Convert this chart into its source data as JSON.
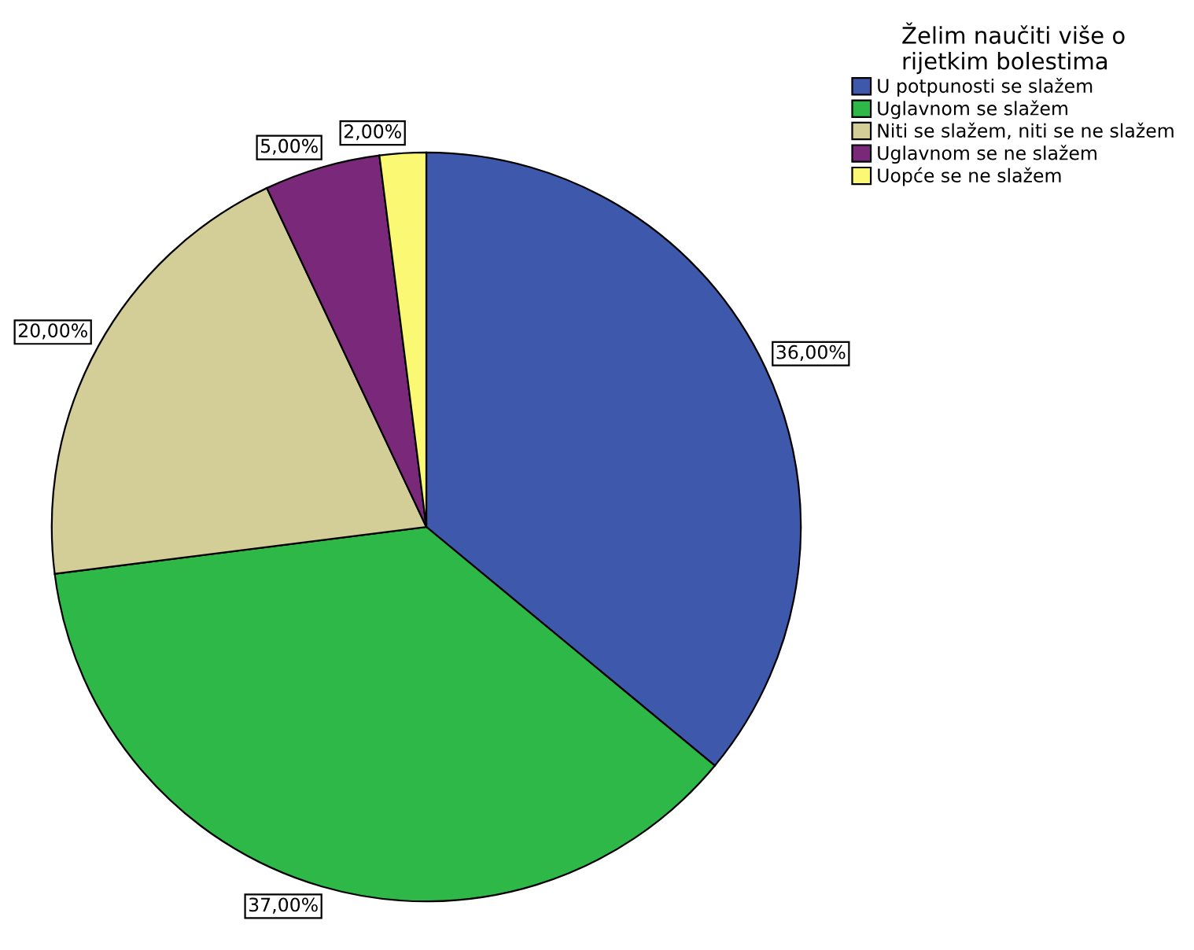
{
  "chart_data": {
    "type": "pie",
    "legend_title": "Želim naučiti više o\nrijetkim bolestima",
    "categories": [
      "U potpunosti se slažem",
      "Uglavnom se slažem",
      "Niti se slažem, niti se ne slažem",
      "Uglavnom se ne slažem",
      "Uopće se ne slažem"
    ],
    "values": [
      36,
      37,
      20,
      5,
      2
    ],
    "colors": [
      "#3e58ac",
      "#2eb848",
      "#d3ce97",
      "#7a287a",
      "#fbf873"
    ],
    "value_labels": [
      "36,00%",
      "37,00%",
      "20,00%",
      "5,00%",
      "2,00%"
    ],
    "legend": "top right"
  }
}
